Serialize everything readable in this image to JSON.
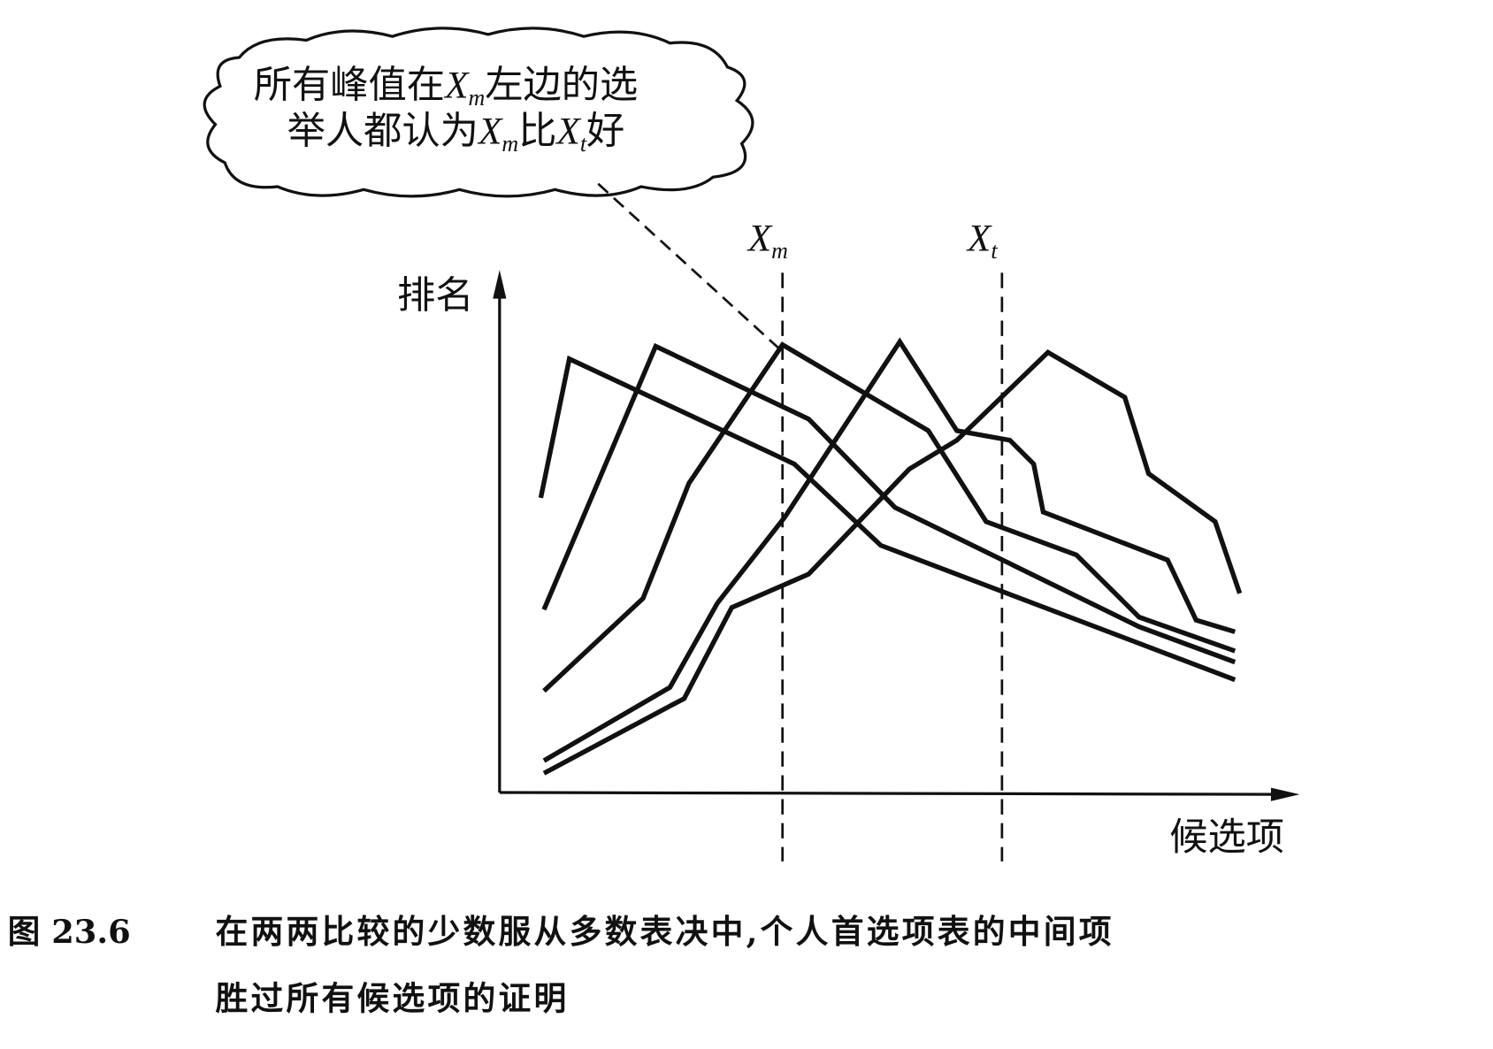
{
  "callout": {
    "line1_a": "所有峰值在",
    "line1_var": "X",
    "line1_sub": "m",
    "line1_b": "左边的选",
    "line2_a": "举人都认为",
    "line2_var1": "X",
    "line2_sub1": "m",
    "line2_mid": "比",
    "line2_var2": "X",
    "line2_sub2": "t",
    "line2_b": "好"
  },
  "caption": {
    "label": "图 23.6",
    "line1": "在两两比较的少数服从多数表决中,个人首选项表的中间项",
    "line2": "胜过所有候选项的证明"
  },
  "chart_data": {
    "type": "line",
    "title": "",
    "xlabel": "候选项",
    "ylabel": "排名",
    "xlim": [
      0,
      100
    ],
    "ylim": [
      0,
      100
    ],
    "grid": false,
    "color": "#111111",
    "markers": [
      {
        "var": "X",
        "sub": "m",
        "x": 35.7
      },
      {
        "var": "X",
        "sub": "t",
        "x": 63.4
      }
    ],
    "series": [
      {
        "points": [
          [
            5.2,
            58.3
          ],
          [
            8.8,
            85.8
          ],
          [
            37.2,
            65.0
          ],
          [
            48.1,
            48.9
          ],
          [
            92.8,
            22.3
          ]
        ]
      },
      {
        "points": [
          [
            5.6,
            36.2
          ],
          [
            19.7,
            88.3
          ],
          [
            39.0,
            73.9
          ],
          [
            49.9,
            56.4
          ],
          [
            80.7,
            32.8
          ],
          [
            92.8,
            25.8
          ]
        ]
      },
      {
        "points": [
          [
            5.6,
            20.1
          ],
          [
            18.1,
            38.4
          ],
          [
            23.9,
            61.2
          ],
          [
            35.7,
            88.6
          ],
          [
            54.1,
            71.6
          ],
          [
            61.4,
            53.6
          ],
          [
            72.8,
            47.0
          ],
          [
            80.7,
            34.7
          ],
          [
            92.8,
            28.0
          ]
        ]
      },
      {
        "points": [
          [
            5.6,
            6.3
          ],
          [
            21.5,
            20.8
          ],
          [
            27.5,
            37.5
          ],
          [
            36.0,
            54.5
          ],
          [
            50.5,
            89.2
          ],
          [
            57.7,
            71.6
          ],
          [
            64.4,
            69.7
          ],
          [
            67.4,
            65.0
          ],
          [
            68.6,
            55.5
          ],
          [
            84.3,
            46.0
          ],
          [
            87.9,
            34.1
          ],
          [
            92.8,
            31.8
          ]
        ]
      },
      {
        "points": [
          [
            5.6,
            3.8
          ],
          [
            23.3,
            18.6
          ],
          [
            29.3,
            36.6
          ],
          [
            39.0,
            43.2
          ],
          [
            51.7,
            64.0
          ],
          [
            57.7,
            69.7
          ],
          [
            69.2,
            87.1
          ],
          [
            78.9,
            78.2
          ],
          [
            81.9,
            63.1
          ],
          [
            90.3,
            53.6
          ],
          [
            93.4,
            39.4
          ]
        ]
      }
    ]
  }
}
